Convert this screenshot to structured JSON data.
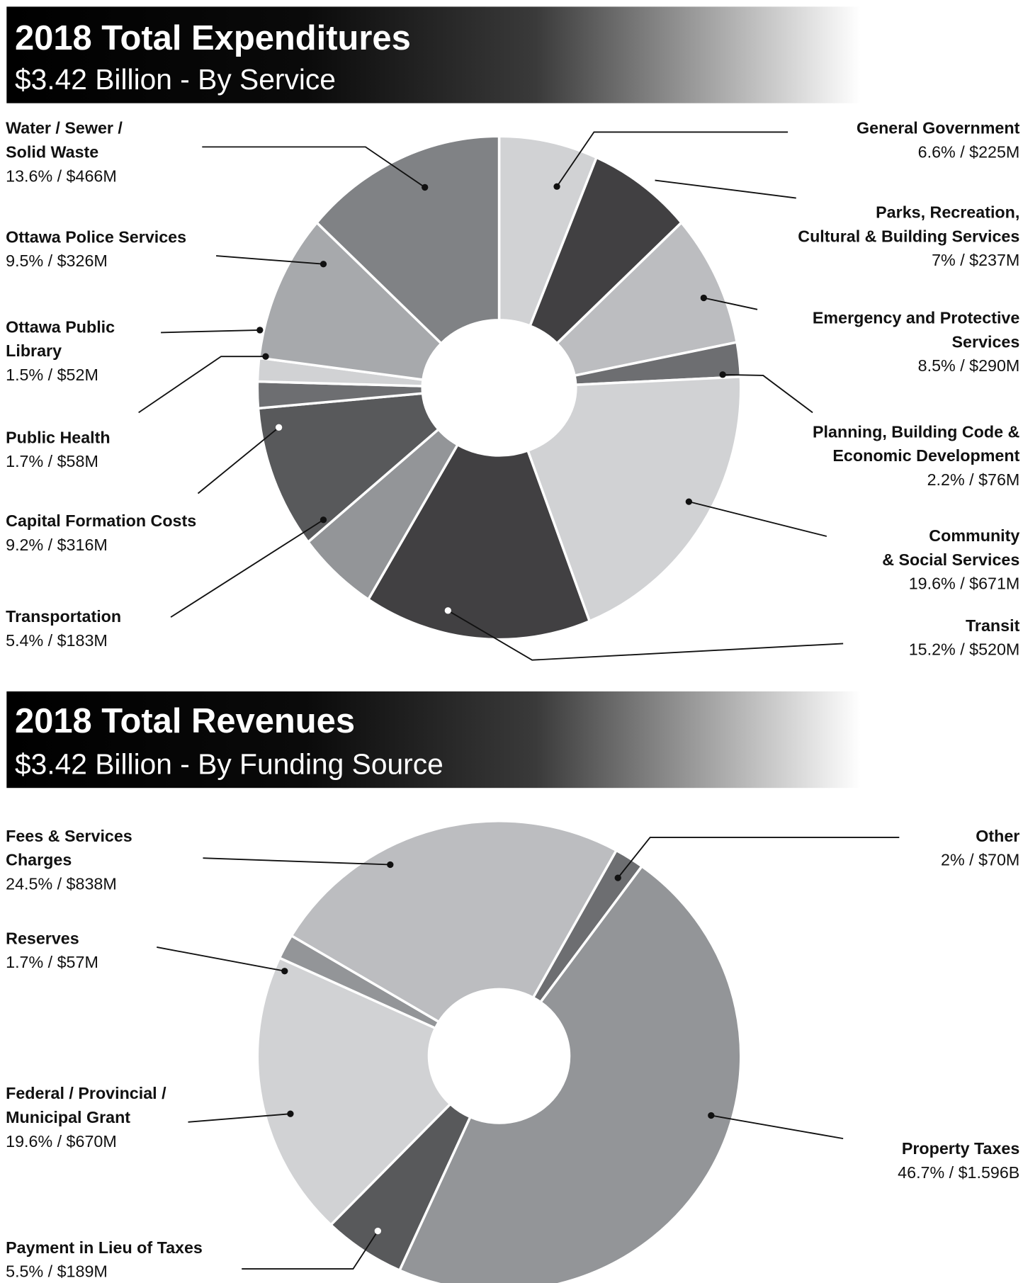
{
  "chart_data": [
    {
      "type": "pie",
      "title": "2018 Total Expenditures",
      "subtitle": "$3.42 Billion - By Service",
      "donut": true,
      "slices": [
        {
          "name": [
            "General Government"
          ],
          "value_label": "6.6% / $225M",
          "percent": 6.6,
          "amount_millions": 225,
          "color": "#d1d2d4"
        },
        {
          "name": [
            "Parks, Recreation,",
            "Cultural & Building Services"
          ],
          "value_label": "7% / $237M",
          "percent": 7,
          "amount_millions": 237,
          "color": "#414042"
        },
        {
          "name": [
            "Emergency and Protective",
            "Services"
          ],
          "value_label": "8.5% / $290M",
          "percent": 8.5,
          "amount_millions": 290,
          "color": "#bcbdc0"
        },
        {
          "name": [
            "Planning, Building Code &",
            "Economic Development"
          ],
          "value_label": "2.2% / $76M",
          "percent": 2.2,
          "amount_millions": 76,
          "color": "#6d6e71"
        },
        {
          "name": [
            "Community",
            "& Social Services"
          ],
          "value_label": "19.6% / $671M",
          "percent": 19.6,
          "amount_millions": 671,
          "color": "#d1d2d4"
        },
        {
          "name": [
            "Transit"
          ],
          "value_label": "15.2% / $520M",
          "percent": 15.2,
          "amount_millions": 520,
          "color": "#414042"
        },
        {
          "name": [
            "Transportation"
          ],
          "value_label": "5.4% / $183M",
          "percent": 5.4,
          "amount_millions": 183,
          "color": "#939598"
        },
        {
          "name": [
            "Capital Formation Costs"
          ],
          "value_label": "9.2% / $316M",
          "percent": 9.2,
          "amount_millions": 316,
          "color": "#58595b"
        },
        {
          "name": [
            "Public Health"
          ],
          "value_label": "1.7% / $58M",
          "percent": 1.7,
          "amount_millions": 58,
          "color": "#6d6e71"
        },
        {
          "name": [
            "Ottawa Public",
            "Library"
          ],
          "value_label": "1.5% / $52M",
          "percent": 1.5,
          "amount_millions": 52,
          "color": "#d1d2d4"
        },
        {
          "name": [
            "Ottawa Police Services"
          ],
          "value_label": "9.5% / $326M",
          "percent": 9.5,
          "amount_millions": 326,
          "color": "#a7a9ac"
        },
        {
          "name": [
            "Water / Sewer /",
            "Solid Waste"
          ],
          "value_label": "13.6% / $466M",
          "percent": 13.6,
          "amount_millions": 466,
          "color": "#808285"
        }
      ]
    },
    {
      "type": "pie",
      "title": "2018 Total Revenues",
      "subtitle": "$3.42 Billion - By Funding Source",
      "donut": true,
      "slices": [
        {
          "name": [
            "Other"
          ],
          "value_label": "2% / $70M",
          "percent": 2,
          "amount_millions": 70,
          "color": "#6d6e71"
        },
        {
          "name": [
            "Property Taxes"
          ],
          "value_label": "46.7% / $1.596B",
          "percent": 46.7,
          "amount_millions": 1596,
          "color": "#939598"
        },
        {
          "name": [
            "Payment in Lieu of Taxes"
          ],
          "value_label": "5.5% / $189M",
          "percent": 5.5,
          "amount_millions": 189,
          "color": "#58595b"
        },
        {
          "name": [
            "Federal / Provincial /",
            "Municipal Grant"
          ],
          "value_label": "19.6% / $670M",
          "percent": 19.6,
          "amount_millions": 670,
          "color": "#d1d2d4"
        },
        {
          "name": [
            "Reserves"
          ],
          "value_label": "1.7% / $57M",
          "percent": 1.7,
          "amount_millions": 57,
          "color": "#939598"
        },
        {
          "name": [
            "Fees & Services",
            "Charges"
          ],
          "value_label": "24.5% / $838M",
          "percent": 24.5,
          "amount_millions": 838,
          "color": "#bcbdc0"
        }
      ]
    }
  ]
}
